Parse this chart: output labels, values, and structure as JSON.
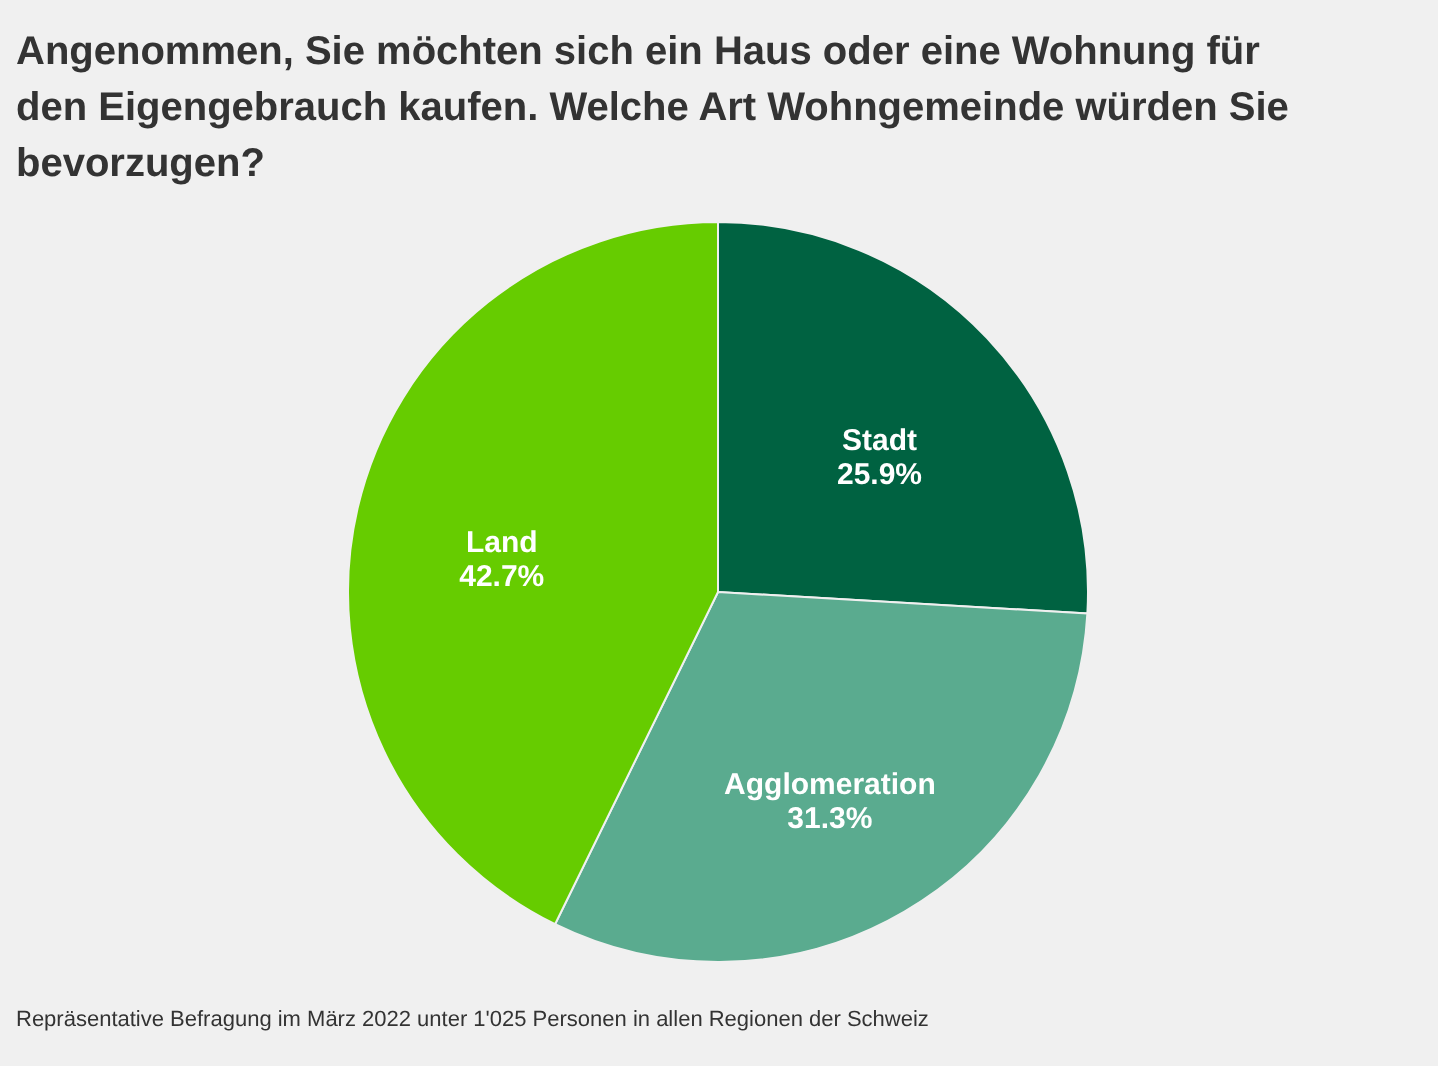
{
  "chart_data": {
    "type": "pie",
    "title": "Angenommen, Sie möchten sich ein Haus oder eine Wohnung für den Eigengebrauch kaufen. Welche Art Wohngemeinde würden Sie bevorzugen?",
    "categories": [
      "Stadt",
      "Agglomeration",
      "Land"
    ],
    "values": [
      25.9,
      31.3,
      42.7
    ],
    "colors": [
      "#006241",
      "#5aab8f",
      "#66cc00"
    ],
    "value_labels": [
      "25.9%",
      "31.3%",
      "42.7%"
    ],
    "annotations": [
      "Repräsentative Befragung im März 2022 unter 1'025 Personen in allen Regionen der Schweiz"
    ],
    "legend": false
  }
}
